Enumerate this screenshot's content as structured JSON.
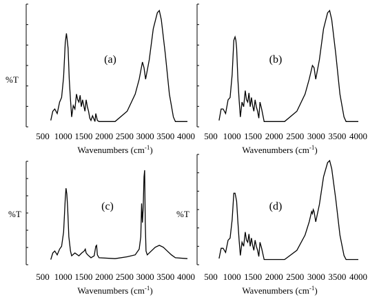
{
  "chart_data": [
    {
      "type": "line",
      "panel": "(a)",
      "ylabel": "%T",
      "xlabel": "Wavenumbers (cm⁻¹)",
      "xlabel_main": "Wavenumbers (cm",
      "xlabel_sup": "-1",
      "xlabel_close": ")",
      "xticks": [
        "500",
        "1000",
        "1500",
        "2000",
        "2500",
        "3000",
        "3500",
        "4000"
      ],
      "xlim": [
        400,
        4000
      ],
      "ylim": [
        0,
        100
      ],
      "x": [
        600,
        650,
        700,
        760,
        820,
        870,
        920,
        960,
        990,
        1010,
        1030,
        1060,
        1090,
        1120,
        1160,
        1200,
        1240,
        1270,
        1300,
        1330,
        1360,
        1390,
        1420,
        1450,
        1480,
        1510,
        1540,
        1570,
        1600,
        1640,
        1700,
        1720,
        1760,
        1800,
        2200,
        2500,
        2700,
        2800,
        2880,
        2920,
        2960,
        3050,
        3150,
        3250,
        3300,
        3350,
        3450,
        3550,
        3650,
        3700,
        4000
      ],
      "y": [
        2,
        10,
        12,
        8,
        18,
        22,
        40,
        70,
        78,
        72,
        65,
        38,
        20,
        5,
        15,
        12,
        25,
        20,
        18,
        24,
        14,
        20,
        15,
        10,
        20,
        14,
        10,
        4,
        2,
        6,
        1,
        8,
        2,
        1,
        1,
        10,
        25,
        38,
        53,
        48,
        38,
        55,
        82,
        96,
        98,
        90,
        60,
        25,
        5,
        1,
        1
      ]
    },
    {
      "type": "line",
      "panel": "(b)",
      "ylabel": "",
      "xlabel": "Wavenumbers (cm⁻¹)",
      "xlabel_main": "Wavenumbers (cm",
      "xlabel_sup": "-1",
      "xlabel_close": ")",
      "xticks": [
        "500",
        "1000",
        "1500",
        "2000",
        "2500",
        "3000",
        "3500",
        "4000"
      ],
      "xlim": [
        400,
        4000
      ],
      "ylim": [
        0,
        100
      ],
      "x": [
        600,
        650,
        700,
        760,
        820,
        870,
        920,
        960,
        990,
        1010,
        1030,
        1060,
        1090,
        1120,
        1160,
        1200,
        1240,
        1270,
        1300,
        1330,
        1360,
        1390,
        1420,
        1450,
        1480,
        1510,
        1540,
        1570,
        1600,
        1640,
        1700,
        1800,
        2200,
        2500,
        2700,
        2800,
        2880,
        2920,
        2960,
        3050,
        3150,
        3250,
        3300,
        3350,
        3450,
        3550,
        3650,
        3700,
        4000
      ],
      "y": [
        2,
        12,
        12,
        8,
        20,
        22,
        42,
        72,
        75,
        72,
        65,
        38,
        20,
        5,
        18,
        14,
        28,
        20,
        18,
        26,
        14,
        22,
        15,
        10,
        20,
        14,
        10,
        4,
        18,
        12,
        1,
        1,
        1,
        10,
        25,
        38,
        50,
        48,
        38,
        55,
        82,
        96,
        98,
        90,
        60,
        25,
        5,
        1,
        1
      ]
    },
    {
      "type": "line",
      "panel": "(c)",
      "ylabel": "%T",
      "xlabel": "Wavenumbers (cm⁻¹)",
      "xlabel_main": "Wavenumbers (cm",
      "xlabel_sup": "-1",
      "xlabel_close": ")",
      "xticks": [
        "500",
        "1000",
        "1500",
        "2000",
        "2500",
        "3000",
        "3500",
        "4000"
      ],
      "xlim": [
        400,
        4000
      ],
      "ylim": [
        0,
        100
      ],
      "x": [
        600,
        650,
        700,
        760,
        820,
        870,
        920,
        960,
        980,
        1000,
        1020,
        1050,
        1090,
        1120,
        1200,
        1300,
        1370,
        1430,
        1460,
        1480,
        1520,
        1600,
        1680,
        1720,
        1740,
        1760,
        1800,
        2200,
        2500,
        2700,
        2800,
        2840,
        2860,
        2880,
        2900,
        2920,
        2935,
        2950,
        2970,
        3000,
        3100,
        3200,
        3300,
        3400,
        3500,
        3600,
        3700,
        4000
      ],
      "y": [
        1,
        8,
        10,
        6,
        12,
        15,
        30,
        65,
        76,
        70,
        55,
        25,
        10,
        5,
        8,
        5,
        8,
        10,
        12,
        8,
        6,
        3,
        5,
        15,
        16,
        6,
        3,
        2,
        4,
        6,
        12,
        25,
        60,
        40,
        55,
        88,
        95,
        40,
        10,
        6,
        10,
        14,
        16,
        14,
        10,
        6,
        3,
        2
      ]
    },
    {
      "type": "line",
      "panel": "(d)",
      "ylabel": "%T",
      "xlabel": "Wavenumbers (cm⁻¹)",
      "xlabel_main": "Wavenumbers (cm",
      "xlabel_sup": "-1",
      "xlabel_close": ")",
      "xticks": [
        "500",
        "1000",
        "1500",
        "2000",
        "2500",
        "3000",
        "3500",
        "4000"
      ],
      "xlim": [
        400,
        4000
      ],
      "ylim": [
        0,
        100
      ],
      "x": [
        600,
        650,
        700,
        760,
        820,
        870,
        920,
        960,
        990,
        1010,
        1030,
        1060,
        1090,
        1120,
        1160,
        1200,
        1240,
        1270,
        1300,
        1330,
        1360,
        1390,
        1420,
        1450,
        1480,
        1510,
        1540,
        1570,
        1600,
        1640,
        1700,
        1800,
        2200,
        2500,
        2700,
        2800,
        2860,
        2880,
        2900,
        2920,
        2960,
        3050,
        3150,
        3250,
        3300,
        3350,
        3450,
        3550,
        3650,
        3700,
        4000
      ],
      "y": [
        2,
        12,
        12,
        8,
        20,
        22,
        40,
        66,
        66,
        62,
        58,
        38,
        20,
        5,
        18,
        14,
        28,
        20,
        18,
        26,
        14,
        22,
        15,
        10,
        20,
        14,
        10,
        4,
        18,
        12,
        1,
        1,
        1,
        10,
        25,
        38,
        48,
        46,
        50,
        48,
        38,
        55,
        82,
        96,
        98,
        90,
        60,
        25,
        5,
        1,
        1
      ]
    }
  ]
}
